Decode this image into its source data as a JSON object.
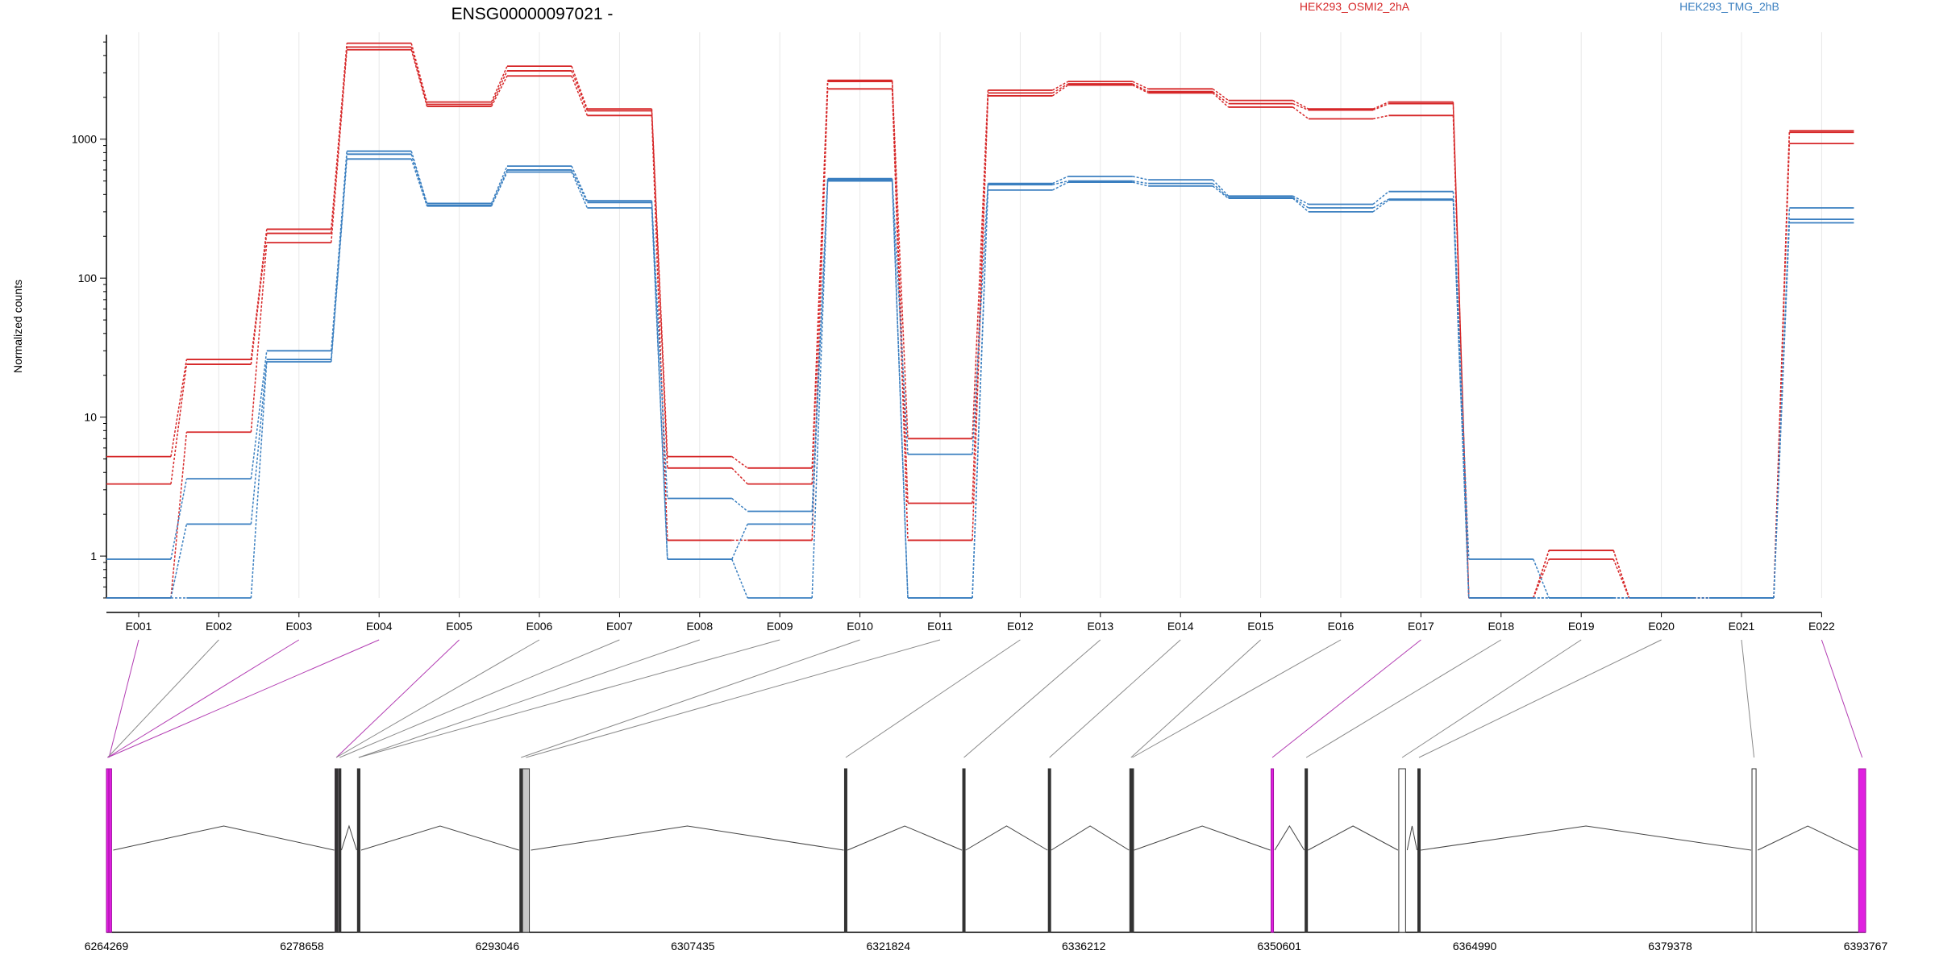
{
  "chart_data": {
    "type": "line",
    "title": "ENSG00000097021 -",
    "ylabel": "Normalized counts",
    "xlabel": "",
    "y_scale": "log",
    "y_ticks": [
      1,
      10,
      100,
      1000
    ],
    "y_tick_labels": [
      "1",
      "10",
      "100",
      "1000"
    ],
    "ylim": [
      0.5,
      5500
    ],
    "grid": "vertical lines at each exon",
    "legend": [
      "HEK293_OSMI2_2hA",
      "HEK293_TMG_2hB"
    ],
    "legend_placement": "top",
    "categories": [
      "E001",
      "E002",
      "E003",
      "E004",
      "E005",
      "E006",
      "E007",
      "E008",
      "E009",
      "E010",
      "E011",
      "E012",
      "E013",
      "E014",
      "E015",
      "E016",
      "E017",
      "E018",
      "E019",
      "E020",
      "E021",
      "E022"
    ],
    "series_colors": {
      "HEK293_OSMI2_2hA": "#d62728",
      "HEK293_TMG_2hB": "#3a7fc0"
    },
    "series": [
      {
        "group": "HEK293_OSMI2_2hA",
        "values": [
          5.2,
          26,
          225,
          4900,
          1850,
          3350,
          1650,
          5.2,
          4.3,
          2650,
          7,
          2250,
          2600,
          2300,
          1900,
          1650,
          1850,
          0.5,
          1.1,
          0.5,
          0.5,
          1150
        ]
      },
      {
        "group": "HEK293_OSMI2_2hA",
        "values": [
          3.3,
          24,
          210,
          4600,
          1780,
          3100,
          1600,
          4.3,
          3.3,
          2600,
          2.4,
          2150,
          2500,
          2200,
          1800,
          1620,
          1800,
          0.5,
          1.1,
          0.5,
          0.5,
          1120
        ]
      },
      {
        "group": "HEK293_OSMI2_2hA",
        "values": [
          0.5,
          7.8,
          180,
          4400,
          1720,
          2850,
          1480,
          1.3,
          1.3,
          2300,
          1.3,
          2050,
          2450,
          2150,
          1700,
          1400,
          1480,
          0.5,
          0.95,
          0.5,
          0.5,
          930
        ]
      },
      {
        "group": "HEK293_TMG_2hB",
        "values": [
          0.95,
          3.6,
          30,
          820,
          345,
          640,
          360,
          2.6,
          2.1,
          520,
          5.4,
          480,
          540,
          510,
          390,
          340,
          420,
          0.95,
          0.5,
          0.5,
          0.5,
          320
        ]
      },
      {
        "group": "HEK293_TMG_2hB",
        "values": [
          0.5,
          1.7,
          26,
          780,
          335,
          600,
          350,
          0.95,
          1.7,
          510,
          0.5,
          470,
          500,
          480,
          380,
          320,
          370,
          0.5,
          0.5,
          0.5,
          0.5,
          265
        ]
      },
      {
        "group": "HEK293_TMG_2hB",
        "values": [
          0.5,
          0.5,
          25,
          720,
          330,
          580,
          320,
          0.95,
          0.5,
          500,
          0.5,
          430,
          490,
          460,
          375,
          300,
          365,
          0.5,
          0.5,
          0.5,
          0.5,
          250
        ]
      }
    ]
  },
  "gene_model": {
    "coordinate_ticks": [
      "6264269",
      "6278658",
      "6293046",
      "6307435",
      "6321824",
      "6336212",
      "6350601",
      "6364990",
      "6379378",
      "6393767"
    ],
    "coordinate_range": [
      6264269,
      6393767
    ],
    "colors": {
      "highlight": "#e020e0",
      "normal": "#333333",
      "noncounted": "#ffffff",
      "gray": "#c8c8c8"
    },
    "exons": [
      {
        "id": "E001",
        "start": 6264269,
        "end": 6264650,
        "style": "highlight"
      },
      {
        "id": "E002",
        "start": 6264269,
        "end": 6264400,
        "style": "normal"
      },
      {
        "id": "E003",
        "start": 6264269,
        "end": 6264400,
        "style": "highlight"
      },
      {
        "id": "E004",
        "start": 6264269,
        "end": 6264400,
        "style": "highlight"
      },
      {
        "id": "E005",
        "start": 6281100,
        "end": 6281250,
        "style": "highlight"
      },
      {
        "id": "E006",
        "start": 6281100,
        "end": 6281250,
        "style": "normal"
      },
      {
        "id": "E007",
        "start": 6281350,
        "end": 6281450,
        "style": "normal"
      },
      {
        "id": "E008",
        "start": 6282750,
        "end": 6282900,
        "style": "normal"
      },
      {
        "id": "E009",
        "start": 6282750,
        "end": 6282900,
        "style": "normal"
      },
      {
        "id": "E010",
        "start": 6294700,
        "end": 6294850,
        "style": "normal"
      },
      {
        "id": "E011",
        "start": 6294900,
        "end": 6295400,
        "style": "gray"
      },
      {
        "id": "E012",
        "start": 6318600,
        "end": 6318700,
        "style": "normal"
      },
      {
        "id": "E013",
        "start": 6327300,
        "end": 6327400,
        "style": "normal"
      },
      {
        "id": "E014",
        "start": 6333600,
        "end": 6333700,
        "style": "normal"
      },
      {
        "id": "E015",
        "start": 6339600,
        "end": 6339700,
        "style": "normal"
      },
      {
        "id": "E016",
        "start": 6339700,
        "end": 6339800,
        "style": "normal"
      },
      {
        "id": "E017",
        "start": 6350000,
        "end": 6350150,
        "style": "highlight"
      },
      {
        "id": "E018",
        "start": 6352500,
        "end": 6352600,
        "style": "normal"
      },
      {
        "id": "E019",
        "start": 6359400,
        "end": 6359900,
        "style": "noncounted"
      },
      {
        "id": "E020",
        "start": 6360800,
        "end": 6360900,
        "style": "normal"
      },
      {
        "id": "E021",
        "start": 6385400,
        "end": 6385700,
        "style": "noncounted"
      },
      {
        "id": "E022",
        "start": 6393250,
        "end": 6393767,
        "style": "highlight"
      }
    ]
  }
}
